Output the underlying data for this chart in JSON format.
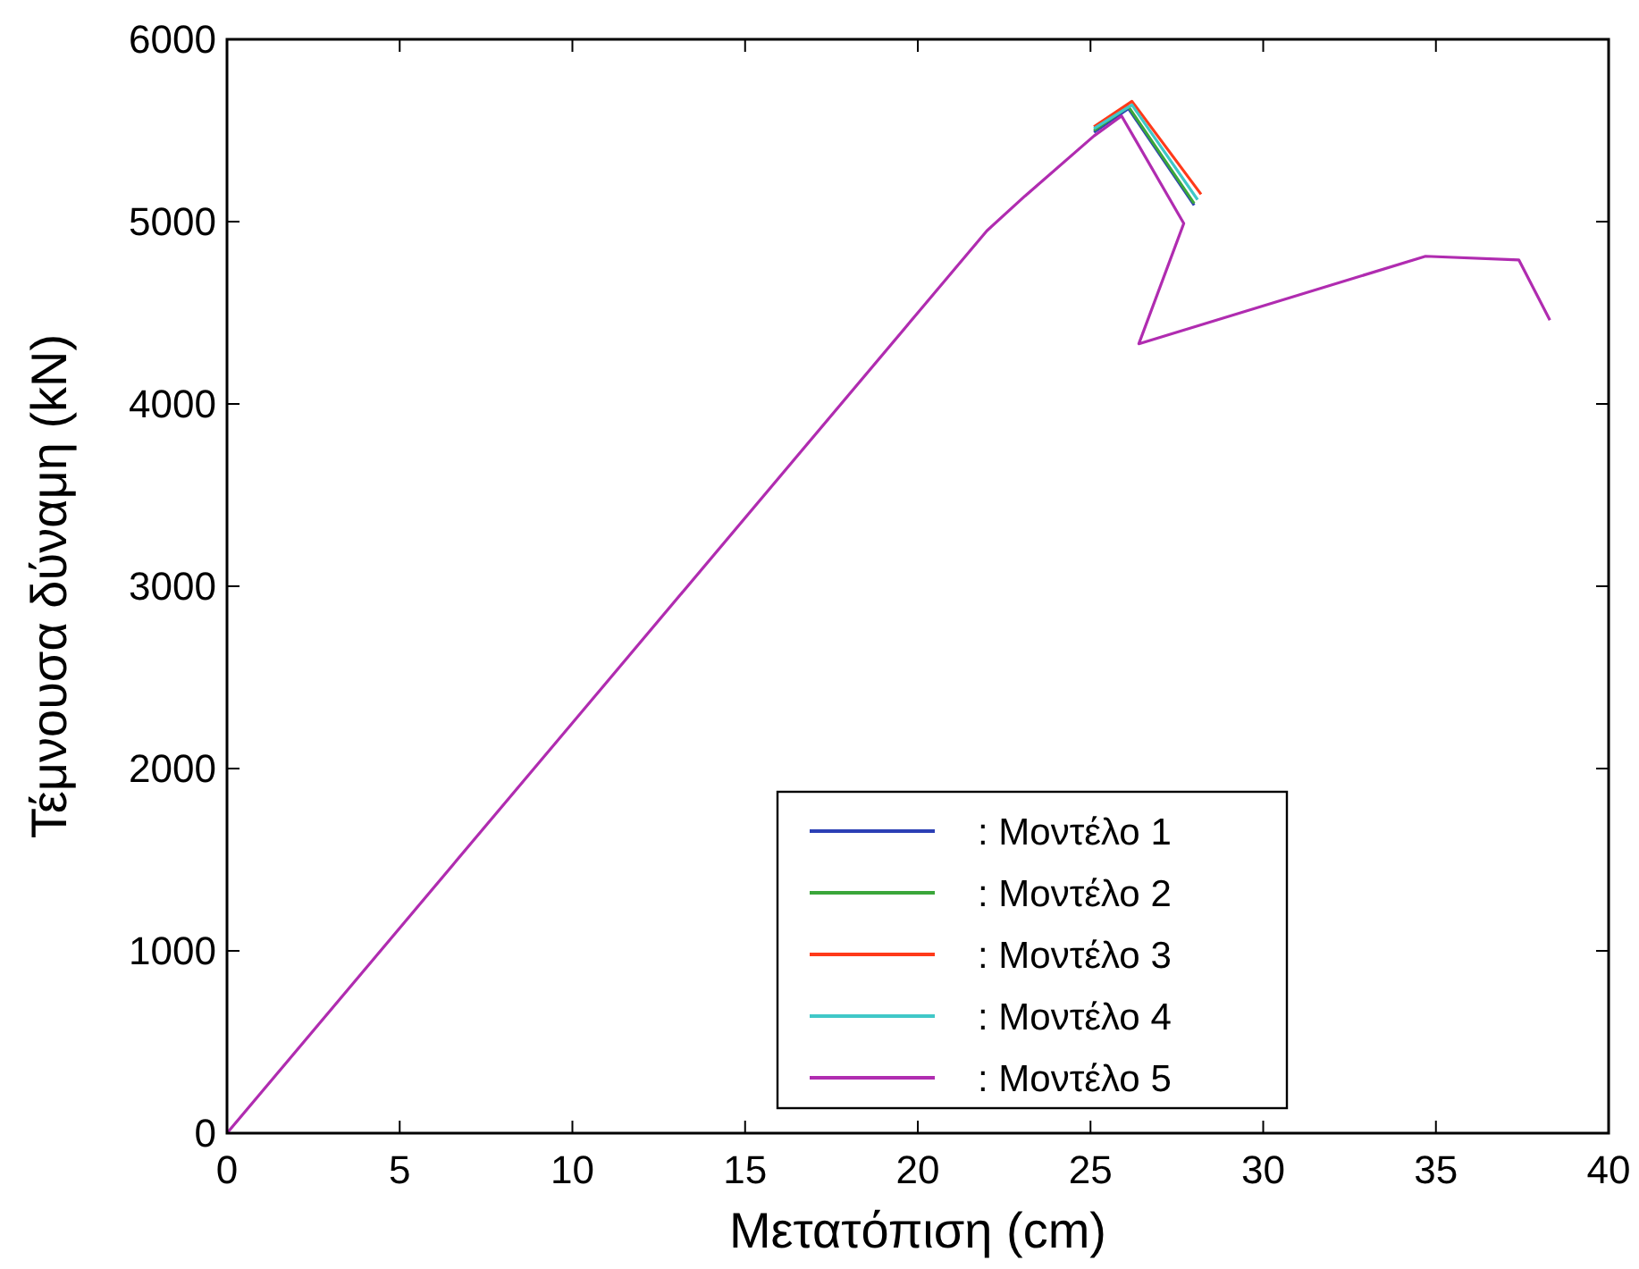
{
  "chart_data": {
    "type": "line",
    "xlabel": "Μετατόπιση (cm)",
    "ylabel": "Τέμνουσα δύναμη (kN)",
    "xlim": [
      0,
      40
    ],
    "xticks": [
      0,
      5,
      10,
      15,
      20,
      25,
      30,
      35,
      40
    ],
    "ylim": [
      0,
      6000
    ],
    "yticks": [
      0,
      1000,
      2000,
      3000,
      4000,
      5000,
      6000
    ],
    "grid": false,
    "legend": "bottom right",
    "marker": "none",
    "line_style": "solid",
    "series": [
      {
        "name": ": Μοντέλο 1",
        "color": "#2b3fb5",
        "x": [
          25.1,
          26.1,
          28.0
        ],
        "values": [
          5490,
          5620,
          5090
        ]
      },
      {
        "name": ": Μοντέλο 2",
        "color": "#3aa63a",
        "x": [
          25.1,
          26.1,
          28.0
        ],
        "values": [
          5500,
          5630,
          5100
        ]
      },
      {
        "name": ": Μοντέλο 3",
        "color": "#ff3a1a",
        "x": [
          25.1,
          26.2,
          28.2
        ],
        "values": [
          5520,
          5660,
          5150
        ]
      },
      {
        "name": ": Μοντέλο 4",
        "color": "#40c8c8",
        "x": [
          25.1,
          26.2,
          28.1
        ],
        "values": [
          5510,
          5640,
          5120
        ]
      },
      {
        "name": ": Μοντέλο 5",
        "color": "#b02cb0",
        "x": [
          0,
          10,
          20,
          22,
          23.1,
          25.1,
          25.9,
          27.7,
          26.4,
          34.7,
          37.4,
          38.3
        ],
        "values": [
          0,
          2250,
          4500,
          4950,
          5140,
          5470,
          5580,
          4990,
          4330,
          4810,
          4790,
          4460
        ]
      }
    ]
  }
}
